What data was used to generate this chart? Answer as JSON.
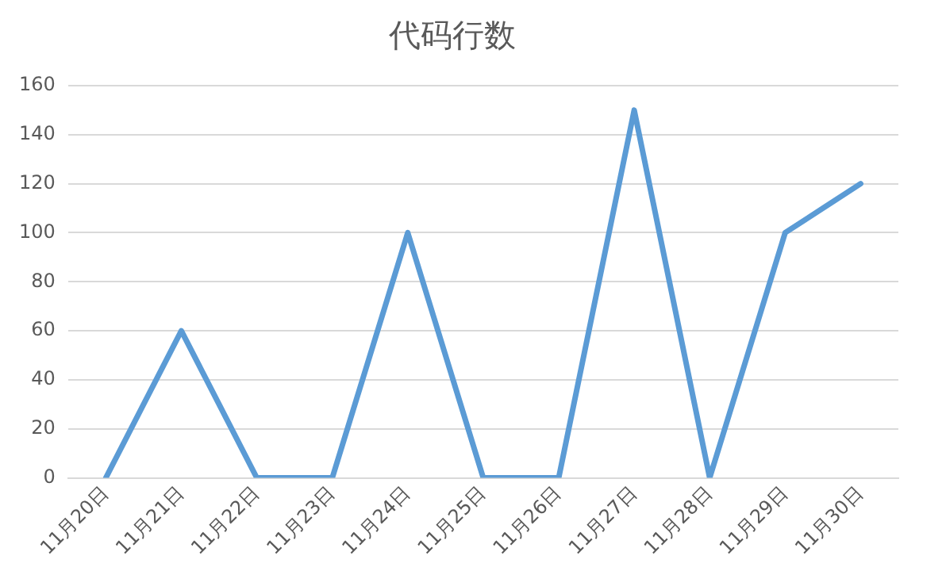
{
  "chart_data": {
    "type": "line",
    "title": "代码行数",
    "categories": [
      "11月20日",
      "11月21日",
      "11月22日",
      "11月23日",
      "11月24日",
      "11月25日",
      "11月26日",
      "11月27日",
      "11月28日",
      "11月29日",
      "11月30日"
    ],
    "series": [
      {
        "color": "#5b9bd5",
        "values": [
          0,
          60,
          0,
          0,
          100,
          0,
          0,
          150,
          0,
          100,
          120
        ]
      }
    ],
    "ylim": [
      0,
      160
    ],
    "yticks": [
      0,
      20,
      40,
      60,
      80,
      100,
      120,
      140,
      160
    ],
    "grid": "y",
    "legend": false,
    "marker": "none",
    "line_style": "solid"
  }
}
